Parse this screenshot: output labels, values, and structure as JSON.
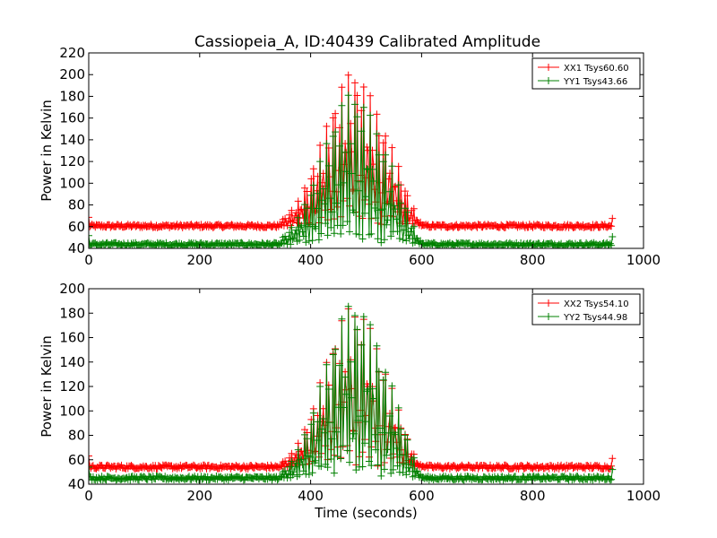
{
  "title": "Cassiopeia_A, ID:40439 Calibrated Amplitude",
  "colors": {
    "xx": "#ff0000",
    "yy": "#008000"
  },
  "chart_data": [
    {
      "type": "line",
      "title": "Cassiopeia_A, ID:40439 Calibrated Amplitude",
      "xlabel": "",
      "ylabel": "Power in Kelvin",
      "xlim": [
        0,
        1000
      ],
      "ylim": [
        40,
        220
      ],
      "xticks": [
        0,
        200,
        400,
        600,
        800,
        1000
      ],
      "yticks": [
        40,
        60,
        80,
        100,
        120,
        140,
        160,
        180,
        200,
        220
      ],
      "legend_position": "top-right",
      "series": [
        {
          "name": "XX1 Tsys60.60",
          "color": "#ff0000",
          "marker": "+",
          "baseline": 60.6,
          "x_start": 0,
          "x_end": 944,
          "envelope_x": [
            0,
            340,
            360,
            380,
            400,
            420,
            440,
            460,
            475,
            490,
            500,
            520,
            540,
            560,
            575,
            590,
            600,
            944
          ],
          "envelope_y": [
            61,
            62,
            72,
            85,
            110,
            140,
            172,
            195,
            205,
            200,
            188,
            168,
            142,
            115,
            90,
            72,
            62,
            62
          ]
        },
        {
          "name": "YY1 Tsys43.66",
          "color": "#008000",
          "marker": "+",
          "baseline": 43.7,
          "x_start": 0,
          "x_end": 944,
          "envelope_x": [
            0,
            340,
            360,
            380,
            400,
            420,
            440,
            460,
            475,
            490,
            500,
            520,
            540,
            560,
            575,
            590,
            600,
            944
          ],
          "envelope_y": [
            44,
            45,
            56,
            70,
            95,
            125,
            155,
            178,
            185,
            180,
            170,
            150,
            125,
            98,
            75,
            55,
            45,
            45
          ]
        }
      ]
    },
    {
      "type": "line",
      "title": "",
      "xlabel": "Time (seconds)",
      "ylabel": "Power in Kelvin",
      "xlim": [
        0,
        1000
      ],
      "ylim": [
        40,
        200
      ],
      "xticks": [
        0,
        200,
        400,
        600,
        800,
        1000
      ],
      "yticks": [
        40,
        60,
        80,
        100,
        120,
        140,
        160,
        180,
        200
      ],
      "legend_position": "top-right",
      "series": [
        {
          "name": "XX2 Tsys54.10",
          "color": "#ff0000",
          "marker": "+",
          "baseline": 54.1,
          "x_start": 0,
          "x_end": 944,
          "envelope_x": [
            0,
            340,
            360,
            380,
            400,
            420,
            440,
            460,
            475,
            490,
            500,
            520,
            540,
            560,
            575,
            590,
            600,
            944
          ],
          "envelope_y": [
            55,
            55,
            62,
            75,
            98,
            128,
            158,
            180,
            188,
            185,
            175,
            155,
            128,
            100,
            78,
            60,
            55,
            56
          ]
        },
        {
          "name": "YY2 Tsys44.98",
          "color": "#008000",
          "marker": "+",
          "baseline": 45.0,
          "x_start": 0,
          "x_end": 944,
          "envelope_x": [
            0,
            340,
            360,
            380,
            400,
            420,
            440,
            460,
            475,
            490,
            500,
            520,
            540,
            560,
            575,
            590,
            600,
            944
          ],
          "envelope_y": [
            46,
            46,
            55,
            70,
            95,
            125,
            158,
            182,
            190,
            187,
            178,
            158,
            130,
            102,
            78,
            56,
            46,
            46
          ]
        }
      ]
    }
  ]
}
